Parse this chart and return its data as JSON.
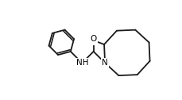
{
  "background_color": "#ffffff",
  "line_color": "#1a1a1a",
  "line_width": 1.3,
  "text_color": "#000000",
  "font_size": 7.5,
  "figsize": [
    2.29,
    1.26
  ],
  "dpi": 100,
  "xlim": [
    0,
    10
  ],
  "ylim": [
    0,
    5.5
  ]
}
